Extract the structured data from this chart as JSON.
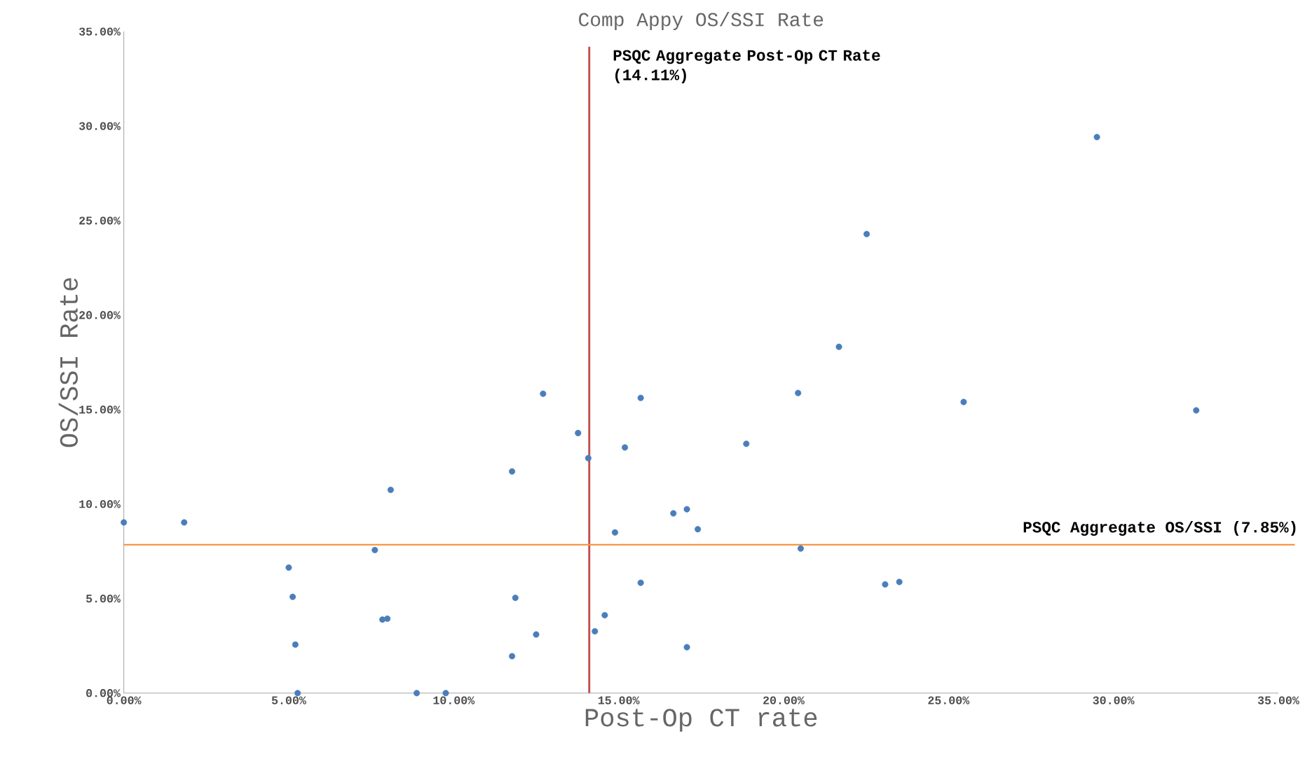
{
  "chart_data": {
    "type": "scatter",
    "title": "Comp Appy OS/SSI Rate",
    "xlabel": "Post-Op CT rate",
    "ylabel": "OS/SSI Rate",
    "x": [
      0,
      1.83,
      5.0,
      5.12,
      5.2,
      5.27,
      7.61,
      7.84,
      7.99,
      8.09,
      8.88,
      9.76,
      11.77,
      11.77,
      11.87,
      12.5,
      12.71,
      13.77,
      14.08,
      14.28,
      14.58,
      14.89,
      15.19,
      15.67,
      15.67,
      16.66,
      17.07,
      17.07,
      17.4,
      18.87,
      20.44,
      20.52,
      21.68,
      22.52,
      23.08,
      23.51,
      25.46,
      29.5,
      32.51
    ],
    "values": [
      9.03,
      9.03,
      6.64,
      5.09,
      2.57,
      0,
      7.57,
      3.89,
      3.94,
      10.75,
      0,
      0,
      11.73,
      1.95,
      5.04,
      3.1,
      15.84,
      13.76,
      12.43,
      3.27,
      4.12,
      8.5,
      13.0,
      15.62,
      5.84,
      9.51,
      9.73,
      2.43,
      8.67,
      13.19,
      15.88,
      7.65,
      18.32,
      24.29,
      5.75,
      5.88,
      15.4,
      29.42,
      14.96
    ],
    "color": "#4a7ebb",
    "marker": "circle",
    "xlim": [
      0,
      35
    ],
    "ylim": [
      0,
      35
    ],
    "xticks": [
      {
        "value": 0,
        "label": "0.00%"
      },
      {
        "value": 5,
        "label": "5.00%"
      },
      {
        "value": 10,
        "label": "10.00%"
      },
      {
        "value": 15,
        "label": "15.00%"
      },
      {
        "value": 20,
        "label": "20.00%"
      },
      {
        "value": 25,
        "label": "25.00%"
      },
      {
        "value": 30,
        "label": "30.00%"
      },
      {
        "value": 35,
        "label": "35.00%"
      }
    ],
    "yticks": [
      {
        "value": 0,
        "label": "0.00%"
      },
      {
        "value": 5,
        "label": "5.00%"
      },
      {
        "value": 10,
        "label": "10.00%"
      },
      {
        "value": 15,
        "label": "15.00%"
      },
      {
        "value": 20,
        "label": "20.00%"
      },
      {
        "value": 25,
        "label": "25.00%"
      },
      {
        "value": 30,
        "label": "30.00%"
      },
      {
        "value": 35,
        "label": "35.00%"
      }
    ],
    "ref_lines": [
      {
        "axis": "x",
        "value": 14.11,
        "label": "PSQC Aggregate Post-Op CT Rate (14.11%)",
        "color": "#c0504d"
      },
      {
        "axis": "y",
        "value": 7.85,
        "label": "PSQC Aggregate OS/SSI (7.85%)",
        "color": "#f79646"
      }
    ],
    "grid": false
  }
}
